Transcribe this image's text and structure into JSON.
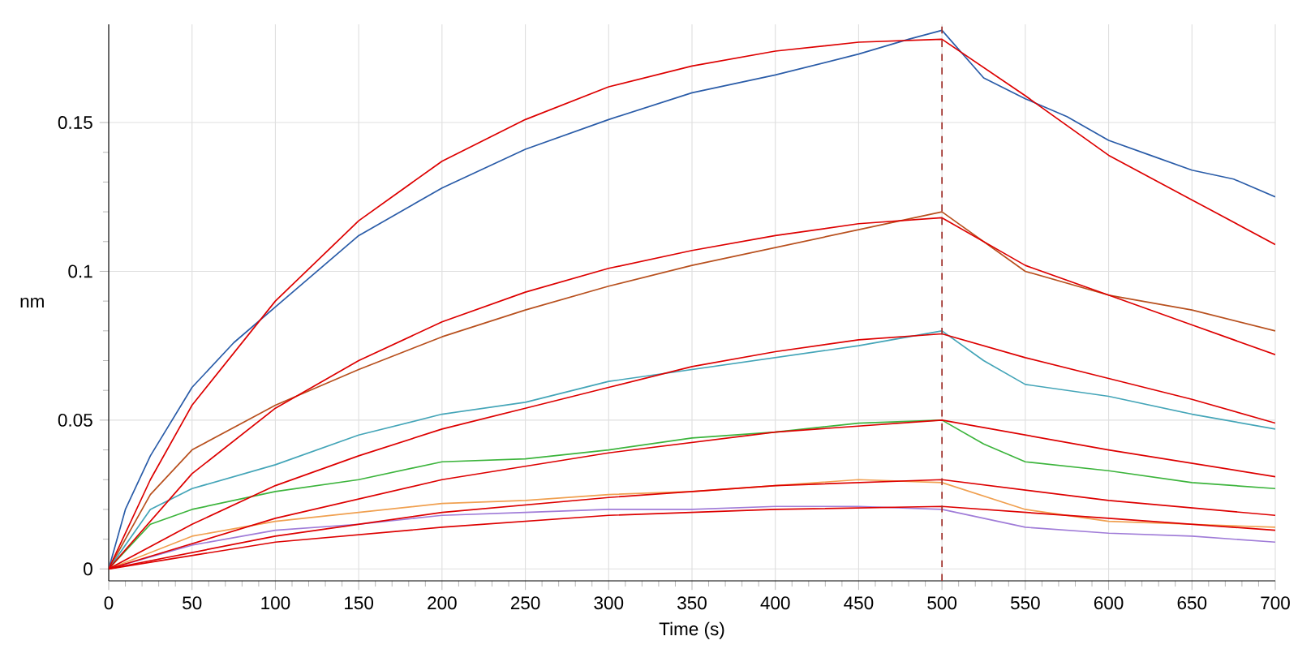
{
  "chart_data": {
    "type": "line",
    "xlabel": "Time (s)",
    "ylabel": "nm",
    "xlim": [
      0,
      700
    ],
    "ylim": [
      -0.004,
      0.183
    ],
    "xticks": [
      0,
      50,
      100,
      150,
      200,
      250,
      300,
      350,
      400,
      450,
      500,
      550,
      600,
      650,
      700
    ],
    "yticks": [
      0,
      0.05,
      0.1,
      0.15
    ],
    "grid": true,
    "marker": "none",
    "line_style": "solid",
    "ref_lines": [
      {
        "axis": "x",
        "value": 500,
        "color": "#a0302a",
        "line_style": "dashed"
      }
    ],
    "series": [
      {
        "color": "#2a5ca8",
        "x": [
          0,
          10,
          25,
          50,
          75,
          100,
          150,
          200,
          250,
          300,
          350,
          400,
          450,
          480,
          500,
          525,
          550,
          575,
          600,
          625,
          650,
          675,
          700
        ],
        "values": [
          0,
          0.02,
          0.038,
          0.061,
          0.076,
          0.088,
          0.112,
          0.128,
          0.141,
          0.151,
          0.16,
          0.166,
          0.173,
          0.178,
          0.181,
          0.165,
          0.158,
          0.152,
          0.144,
          0.139,
          0.134,
          0.131,
          0.125
        ]
      },
      {
        "color": "#b8501e",
        "x": [
          0,
          25,
          50,
          100,
          150,
          200,
          250,
          300,
          350,
          400,
          450,
          500,
          550,
          600,
          650,
          700
        ],
        "values": [
          0,
          0.025,
          0.04,
          0.055,
          0.067,
          0.078,
          0.087,
          0.095,
          0.102,
          0.108,
          0.114,
          0.12,
          0.1,
          0.092,
          0.087,
          0.08
        ]
      },
      {
        "color": "#44a5b8",
        "x": [
          0,
          25,
          50,
          100,
          150,
          200,
          250,
          300,
          350,
          400,
          450,
          500,
          525,
          550,
          600,
          650,
          700
        ],
        "values": [
          0,
          0.02,
          0.027,
          0.035,
          0.045,
          0.052,
          0.056,
          0.063,
          0.067,
          0.071,
          0.075,
          0.08,
          0.07,
          0.062,
          0.058,
          0.052,
          0.047
        ]
      },
      {
        "color": "#3cb43c",
        "x": [
          0,
          25,
          50,
          100,
          150,
          200,
          250,
          300,
          350,
          400,
          450,
          500,
          525,
          550,
          600,
          650,
          700
        ],
        "values": [
          0,
          0.015,
          0.02,
          0.026,
          0.03,
          0.036,
          0.037,
          0.04,
          0.044,
          0.046,
          0.049,
          0.05,
          0.042,
          0.036,
          0.033,
          0.029,
          0.027
        ]
      },
      {
        "color": "#f0a050",
        "x": [
          0,
          50,
          100,
          150,
          200,
          250,
          300,
          350,
          400,
          450,
          500,
          550,
          600,
          650,
          700
        ],
        "values": [
          0,
          0.011,
          0.016,
          0.019,
          0.022,
          0.023,
          0.025,
          0.026,
          0.028,
          0.03,
          0.029,
          0.02,
          0.016,
          0.015,
          0.014
        ]
      },
      {
        "color": "#a07cd8",
        "x": [
          0,
          50,
          100,
          150,
          200,
          250,
          300,
          350,
          400,
          450,
          500,
          550,
          600,
          650,
          700
        ],
        "values": [
          0,
          0.008,
          0.013,
          0.015,
          0.018,
          0.019,
          0.02,
          0.02,
          0.021,
          0.021,
          0.02,
          0.014,
          0.012,
          0.011,
          0.009
        ]
      },
      {
        "color": "#dd0000",
        "x": [
          0,
          25,
          50,
          100,
          150,
          200,
          250,
          300,
          350,
          400,
          450,
          500,
          550,
          600,
          650,
          700
        ],
        "values": [
          0,
          0.03,
          0.055,
          0.09,
          0.117,
          0.137,
          0.151,
          0.162,
          0.169,
          0.174,
          0.177,
          0.178,
          0.159,
          0.139,
          0.124,
          0.109
        ]
      },
      {
        "color": "#dd0000",
        "x": [
          0,
          50,
          100,
          150,
          200,
          250,
          300,
          350,
          400,
          450,
          500,
          550,
          600,
          650,
          700
        ],
        "values": [
          0,
          0.032,
          0.054,
          0.07,
          0.083,
          0.093,
          0.101,
          0.107,
          0.112,
          0.116,
          0.118,
          0.102,
          0.092,
          0.082,
          0.072
        ]
      },
      {
        "color": "#dd0000",
        "x": [
          0,
          50,
          100,
          150,
          200,
          250,
          300,
          350,
          400,
          450,
          500,
          550,
          600,
          650,
          700
        ],
        "values": [
          0,
          0.015,
          0.028,
          0.038,
          0.047,
          0.054,
          0.061,
          0.068,
          0.073,
          0.077,
          0.079,
          0.071,
          0.064,
          0.057,
          0.049
        ]
      },
      {
        "color": "#dd0000",
        "x": [
          0,
          100,
          200,
          300,
          400,
          500,
          600,
          700
        ],
        "values": [
          0,
          0.017,
          0.03,
          0.039,
          0.046,
          0.05,
          0.04,
          0.031
        ]
      },
      {
        "color": "#dd0000",
        "x": [
          0,
          100,
          200,
          300,
          400,
          500,
          600,
          700
        ],
        "values": [
          0,
          0.011,
          0.019,
          0.024,
          0.028,
          0.03,
          0.023,
          0.018
        ]
      },
      {
        "color": "#dd0000",
        "x": [
          0,
          100,
          200,
          300,
          400,
          500,
          600,
          700
        ],
        "values": [
          0,
          0.009,
          0.014,
          0.018,
          0.02,
          0.021,
          0.017,
          0.013
        ]
      }
    ]
  }
}
